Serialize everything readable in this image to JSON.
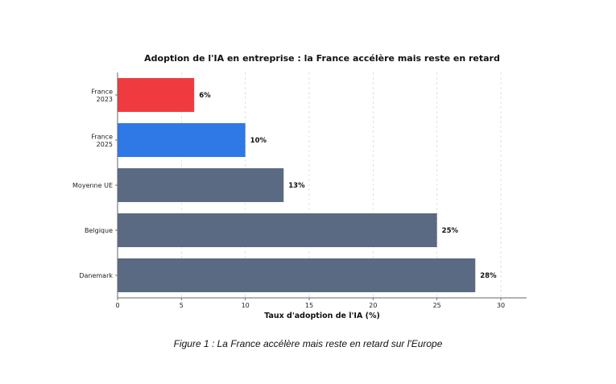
{
  "chart_data": {
    "type": "bar",
    "orientation": "horizontal",
    "title": "Adoption de l'IA en entreprise : la France accélère mais reste en retard",
    "xlabel": "Taux d'adoption de l'IA (%)",
    "ylabel": "",
    "xlim": [
      0,
      32
    ],
    "x_ticks": [
      0,
      5,
      10,
      15,
      20,
      25,
      30
    ],
    "grid": "vertical-dashed",
    "bars": [
      {
        "label_lines": [
          "France",
          "2023"
        ],
        "value": 6,
        "value_label": "6%",
        "color": "#ef3b3f"
      },
      {
        "label_lines": [
          "France",
          "2025"
        ],
        "value": 10,
        "value_label": "10%",
        "color": "#2f79e6"
      },
      {
        "label_lines": [
          "Moyenne UE"
        ],
        "value": 13,
        "value_label": "13%",
        "color": "#5a6a82"
      },
      {
        "label_lines": [
          "Belgique"
        ],
        "value": 25,
        "value_label": "25%",
        "color": "#5a6a82"
      },
      {
        "label_lines": [
          "Danemark"
        ],
        "value": 28,
        "value_label": "28%",
        "color": "#5a6a82"
      }
    ]
  },
  "caption": "Figure 1 : La France accélère mais reste en retard sur l'Europe"
}
